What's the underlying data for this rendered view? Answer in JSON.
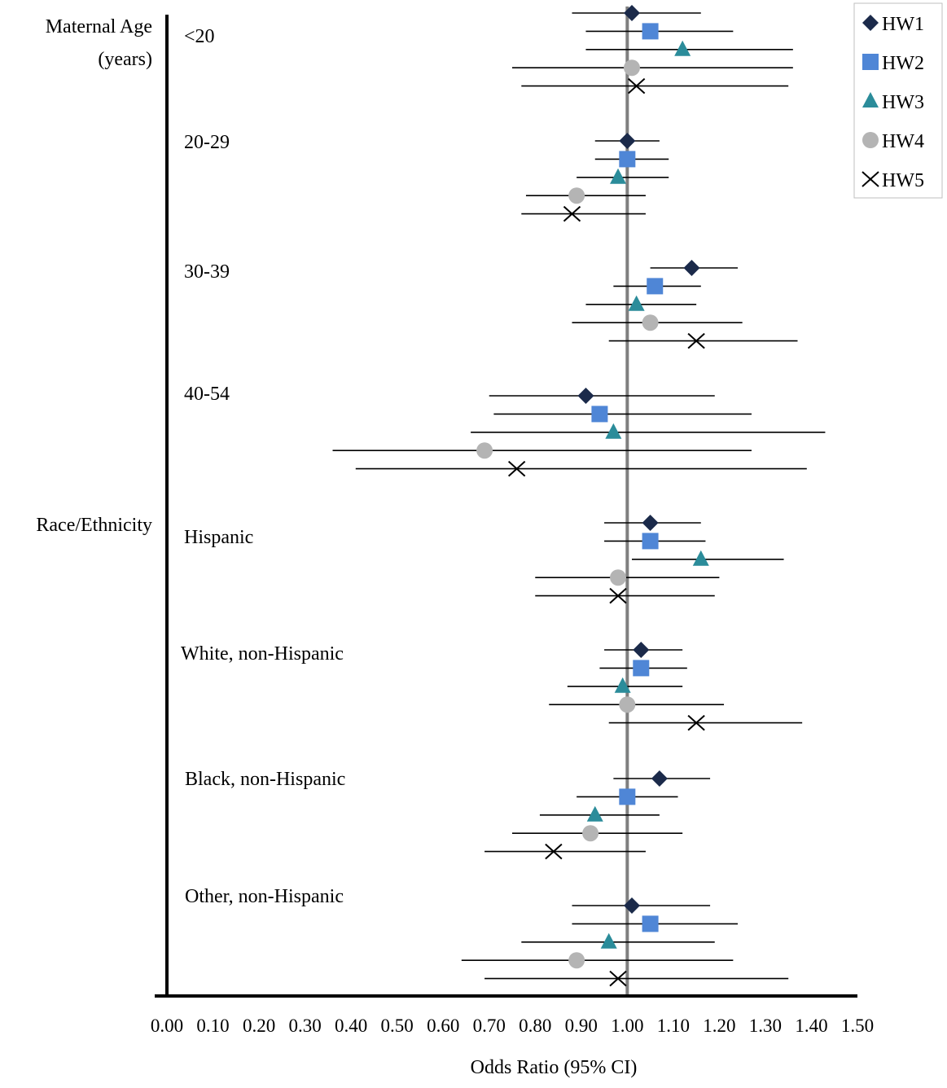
{
  "chart_data": {
    "type": "forest",
    "xlabel": "Odds Ratio (95% CI)",
    "xlim": [
      0,
      1.5
    ],
    "x_ticks": [
      "0.00",
      "0.10",
      "0.20",
      "0.30",
      "0.40",
      "0.50",
      "0.60",
      "0.70",
      "0.80",
      "0.90",
      "1.00",
      "1.10",
      "1.20",
      "1.30",
      "1.40",
      "1.50"
    ],
    "reference_line": 1.0,
    "legend_position": "top-right",
    "series": [
      {
        "name": "HW1",
        "marker": "diamond",
        "color": "#1b2a4a"
      },
      {
        "name": "HW2",
        "marker": "square",
        "color": "#4f86d6"
      },
      {
        "name": "HW3",
        "marker": "triangle",
        "color": "#2b8c9a"
      },
      {
        "name": "HW4",
        "marker": "circle",
        "color": "#b4b4b4"
      },
      {
        "name": "HW5",
        "marker": "x",
        "color": "#000000"
      }
    ],
    "sections": [
      {
        "label": "Maternal Age (years)",
        "label_lines": [
          "Maternal Age",
          "(years)"
        ]
      },
      {
        "label": "Race/Ethnicity",
        "label_lines": [
          "Race/Ethnicity"
        ]
      }
    ],
    "groups": [
      {
        "label": "<20",
        "section": 0,
        "estimates": [
          {
            "series": "HW1",
            "or": 1.01,
            "lo": 0.88,
            "hi": 1.16
          },
          {
            "series": "HW2",
            "or": 1.05,
            "lo": 0.91,
            "hi": 1.23
          },
          {
            "series": "HW3",
            "or": 1.12,
            "lo": 0.91,
            "hi": 1.36
          },
          {
            "series": "HW4",
            "or": 1.01,
            "lo": 0.75,
            "hi": 1.36
          },
          {
            "series": "HW5",
            "or": 1.02,
            "lo": 0.77,
            "hi": 1.35
          }
        ]
      },
      {
        "label": "20-29",
        "section": 0,
        "estimates": [
          {
            "series": "HW1",
            "or": 1.0,
            "lo": 0.93,
            "hi": 1.07
          },
          {
            "series": "HW2",
            "or": 1.0,
            "lo": 0.93,
            "hi": 1.09
          },
          {
            "series": "HW3",
            "or": 0.98,
            "lo": 0.89,
            "hi": 1.09
          },
          {
            "series": "HW4",
            "or": 0.89,
            "lo": 0.78,
            "hi": 1.04
          },
          {
            "series": "HW5",
            "or": 0.88,
            "lo": 0.77,
            "hi": 1.04
          }
        ]
      },
      {
        "label": "30-39",
        "section": 0,
        "estimates": [
          {
            "series": "HW1",
            "or": 1.14,
            "lo": 1.05,
            "hi": 1.24
          },
          {
            "series": "HW2",
            "or": 1.06,
            "lo": 0.97,
            "hi": 1.16
          },
          {
            "series": "HW3",
            "or": 1.02,
            "lo": 0.91,
            "hi": 1.15
          },
          {
            "series": "HW4",
            "or": 1.05,
            "lo": 0.88,
            "hi": 1.25
          },
          {
            "series": "HW5",
            "or": 1.15,
            "lo": 0.96,
            "hi": 1.37
          }
        ]
      },
      {
        "label": "40-54",
        "section": 0,
        "estimates": [
          {
            "series": "HW1",
            "or": 0.91,
            "lo": 0.7,
            "hi": 1.19
          },
          {
            "series": "HW2",
            "or": 0.94,
            "lo": 0.71,
            "hi": 1.27
          },
          {
            "series": "HW3",
            "or": 0.97,
            "lo": 0.66,
            "hi": 1.43
          },
          {
            "series": "HW4",
            "or": 0.69,
            "lo": 0.36,
            "hi": 1.27
          },
          {
            "series": "HW5",
            "or": 0.76,
            "lo": 0.41,
            "hi": 1.39
          }
        ]
      },
      {
        "label": "Hispanic",
        "section": 1,
        "estimates": [
          {
            "series": "HW1",
            "or": 1.05,
            "lo": 0.95,
            "hi": 1.16
          },
          {
            "series": "HW2",
            "or": 1.05,
            "lo": 0.95,
            "hi": 1.17
          },
          {
            "series": "HW3",
            "or": 1.16,
            "lo": 1.01,
            "hi": 1.34
          },
          {
            "series": "HW4",
            "or": 0.98,
            "lo": 0.8,
            "hi": 1.2
          },
          {
            "series": "HW5",
            "or": 0.98,
            "lo": 0.8,
            "hi": 1.19
          }
        ]
      },
      {
        "label": "White, non-Hispanic",
        "section": 1,
        "estimates": [
          {
            "series": "HW1",
            "or": 1.03,
            "lo": 0.95,
            "hi": 1.12
          },
          {
            "series": "HW2",
            "or": 1.03,
            "lo": 0.94,
            "hi": 1.13
          },
          {
            "series": "HW3",
            "or": 0.99,
            "lo": 0.87,
            "hi": 1.12
          },
          {
            "series": "HW4",
            "or": 1.0,
            "lo": 0.83,
            "hi": 1.21
          },
          {
            "series": "HW5",
            "or": 1.15,
            "lo": 0.96,
            "hi": 1.38
          }
        ]
      },
      {
        "label": "Black, non-Hispanic",
        "section": 1,
        "estimates": [
          {
            "series": "HW1",
            "or": 1.07,
            "lo": 0.97,
            "hi": 1.18
          },
          {
            "series": "HW2",
            "or": 1.0,
            "lo": 0.89,
            "hi": 1.11
          },
          {
            "series": "HW3",
            "or": 0.93,
            "lo": 0.81,
            "hi": 1.07
          },
          {
            "series": "HW4",
            "or": 0.92,
            "lo": 0.75,
            "hi": 1.12
          },
          {
            "series": "HW5",
            "or": 0.84,
            "lo": 0.69,
            "hi": 1.04
          }
        ]
      },
      {
        "label": "Other, non-Hispanic",
        "section": 1,
        "estimates": [
          {
            "series": "HW1",
            "or": 1.01,
            "lo": 0.88,
            "hi": 1.18
          },
          {
            "series": "HW2",
            "or": 1.05,
            "lo": 0.88,
            "hi": 1.24
          },
          {
            "series": "HW3",
            "or": 0.96,
            "lo": 0.77,
            "hi": 1.19
          },
          {
            "series": "HW4",
            "or": 0.89,
            "lo": 0.64,
            "hi": 1.23
          },
          {
            "series": "HW5",
            "or": 0.98,
            "lo": 0.69,
            "hi": 1.35
          }
        ]
      }
    ]
  }
}
